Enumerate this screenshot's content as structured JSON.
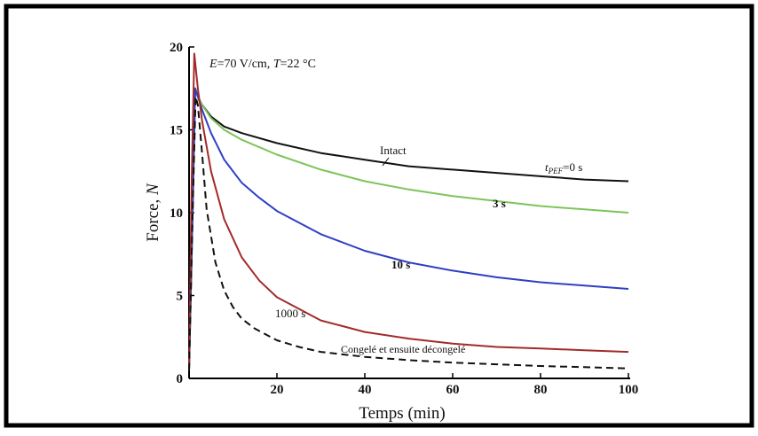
{
  "chart_data": {
    "type": "line",
    "title": "",
    "annotation_top": {
      "e_sym": "E",
      "e_val": "=70 V/cm, ",
      "t_sym": "T",
      "t_val": "=22 °C"
    },
    "xlabel": "Temps (min)",
    "ylabel_main": "Force, ",
    "ylabel_italic": "N",
    "xlim": [
      0,
      100
    ],
    "ylim": [
      0,
      20
    ],
    "xticks": [
      20,
      40,
      60,
      80,
      100
    ],
    "yticks": [
      0,
      5,
      10,
      15,
      20
    ],
    "grid": false,
    "legend": "none",
    "series": [
      {
        "name": "Intact",
        "color": "#111111",
        "dashed": false,
        "x": [
          0,
          0.8,
          1.4,
          2,
          3,
          5,
          8,
          12,
          20,
          30,
          40,
          50,
          60,
          70,
          80,
          90,
          100
        ],
        "y": [
          0.5,
          10,
          17.5,
          17,
          16.5,
          15.8,
          15.2,
          14.8,
          14.2,
          13.6,
          13.2,
          12.8,
          12.6,
          12.4,
          12.2,
          12.0,
          11.9
        ]
      },
      {
        "name": "3 s",
        "color": "#7dc45a",
        "dashed": false,
        "x": [
          0,
          0.8,
          1.4,
          2,
          3,
          5,
          8,
          12,
          20,
          30,
          40,
          50,
          60,
          70,
          80,
          90,
          100
        ],
        "y": [
          0.5,
          10,
          17.5,
          17,
          16.5,
          15.7,
          15.0,
          14.4,
          13.5,
          12.6,
          11.9,
          11.4,
          11.0,
          10.7,
          10.4,
          10.2,
          10.0
        ]
      },
      {
        "name": "10 s",
        "color": "#2f3fc4",
        "dashed": false,
        "x": [
          0,
          0.8,
          1.4,
          2,
          3,
          5,
          8,
          12,
          16,
          20,
          30,
          40,
          50,
          60,
          70,
          80,
          90,
          100
        ],
        "y": [
          0.5,
          10,
          17.5,
          17,
          16.2,
          14.8,
          13.2,
          11.8,
          10.9,
          10.1,
          8.7,
          7.7,
          7.0,
          6.5,
          6.1,
          5.8,
          5.6,
          5.4
        ]
      },
      {
        "name": "1000 s",
        "color": "#a32a2a",
        "dashed": false,
        "x": [
          0,
          0.6,
          1.2,
          2,
          3,
          5,
          8,
          12,
          16,
          20,
          30,
          40,
          50,
          60,
          70,
          80,
          90,
          100
        ],
        "y": [
          0.5,
          12,
          19.6,
          17.5,
          15.5,
          12.5,
          9.6,
          7.3,
          5.9,
          4.9,
          3.5,
          2.8,
          2.4,
          2.1,
          1.9,
          1.8,
          1.7,
          1.6
        ]
      },
      {
        "name": "Congelé et ensuite décongelé",
        "color": "#111111",
        "dashed": true,
        "x": [
          0,
          0.8,
          1.5,
          2,
          3,
          4,
          6,
          8,
          10,
          12,
          15,
          20,
          25,
          30,
          40,
          50,
          60,
          70,
          80,
          90,
          100
        ],
        "y": [
          0.5,
          10,
          17,
          16.5,
          13.5,
          10.2,
          7.0,
          5.3,
          4.3,
          3.6,
          3.0,
          2.3,
          1.9,
          1.6,
          1.3,
          1.1,
          0.95,
          0.85,
          0.75,
          0.68,
          0.6
        ]
      }
    ],
    "labels": {
      "intact": "Intact",
      "tpef_sym": "t",
      "tpef_sub": "PEF",
      "tpef_val": "=0 s",
      "s3": "3 s",
      "s10": "10 s",
      "s1000": "1000 s",
      "frozen": "Congelé et ensuite décongelé"
    }
  }
}
